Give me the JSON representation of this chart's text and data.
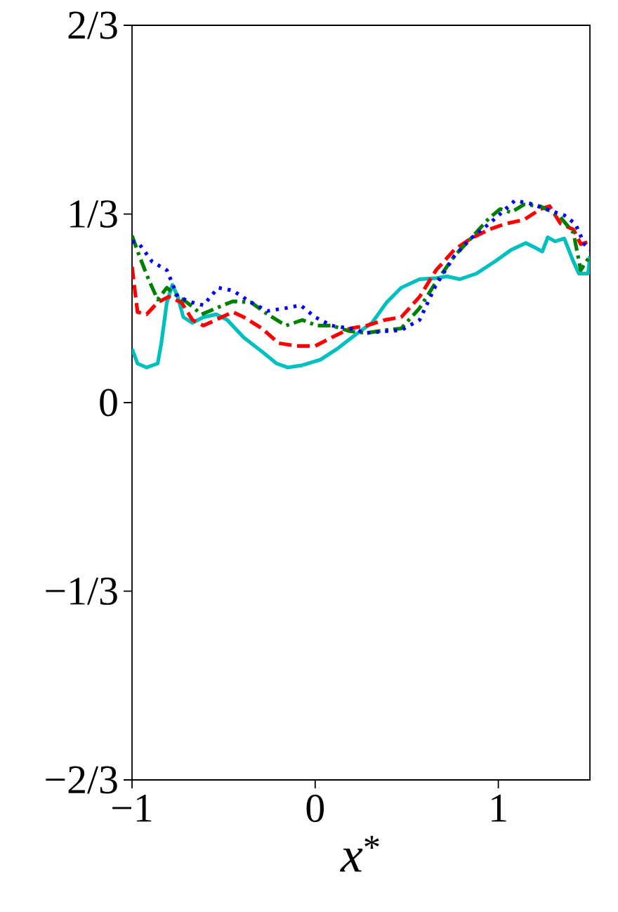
{
  "chart_data": {
    "type": "line",
    "xlabel": "*x*$^{*}$",
    "xlim": [
      -1,
      1.5
    ],
    "xticks": [
      {
        "value": -1,
        "label": "−1"
      },
      0,
      1
    ],
    "ylim": [
      -0.6667,
      0.6667
    ],
    "yticks": [
      {
        "value": -0.6667,
        "label": "−2/3"
      },
      {
        "value": -0.3333,
        "label": "−1/3"
      },
      0,
      {
        "value": 0.3333,
        "label": "1/3"
      },
      {
        "value": 0.6667,
        "label": "2/3"
      }
    ],
    "series": [
      {
        "color": "#00bfbf",
        "line_style": "solid",
        "x": [
          -1,
          -0.97,
          -0.92,
          -0.86,
          -0.84,
          -0.81,
          -0.78,
          -0.75,
          -0.72,
          -0.67,
          -0.61,
          -0.54,
          -0.48,
          -0.39,
          -0.29,
          -0.21,
          -0.15,
          -0.07,
          0.03,
          0.12,
          0.22,
          0.31,
          0.39,
          0.47,
          0.57,
          0.66,
          0.72,
          0.79,
          0.88,
          0.98,
          1.07,
          1.15,
          1.2,
          1.24,
          1.27,
          1.31,
          1.36,
          1.41,
          1.44,
          1.49,
          1.5
        ],
        "values": [
          0.095,
          0.069,
          0.062,
          0.069,
          0.105,
          0.177,
          0.208,
          0.187,
          0.151,
          0.141,
          0.151,
          0.156,
          0.146,
          0.115,
          0.09,
          0.069,
          0.062,
          0.066,
          0.076,
          0.095,
          0.12,
          0.141,
          0.177,
          0.203,
          0.218,
          0.22,
          0.223,
          0.218,
          0.228,
          0.249,
          0.27,
          0.282,
          0.274,
          0.267,
          0.292,
          0.285,
          0.29,
          0.249,
          0.228,
          0.228,
          0.259
        ]
      },
      {
        "color": "#ff0000",
        "line_style": "dashed",
        "x": [
          -1,
          -0.97,
          -0.92,
          -0.86,
          -0.8,
          -0.73,
          -0.67,
          -0.61,
          -0.51,
          -0.45,
          -0.39,
          -0.29,
          -0.2,
          -0.1,
          0,
          0.09,
          0.19,
          0.28,
          0.38,
          0.47,
          0.57,
          0.66,
          0.76,
          0.85,
          0.95,
          1.04,
          1.14,
          1.23,
          1.28,
          1.34,
          1.41,
          1.45,
          1.5
        ],
        "values": [
          0.24,
          0.16,
          0.156,
          0.177,
          0.187,
          0.177,
          0.146,
          0.136,
          0.151,
          0.16,
          0.151,
          0.131,
          0.105,
          0.1,
          0.1,
          0.115,
          0.131,
          0.136,
          0.146,
          0.151,
          0.187,
          0.234,
          0.27,
          0.29,
          0.306,
          0.316,
          0.323,
          0.342,
          0.347,
          0.316,
          0.306,
          0.28,
          0.285
        ]
      },
      {
        "color": "#008000",
        "line_style": "dashdot",
        "x": [
          -1,
          -0.96,
          -0.91,
          -0.86,
          -0.81,
          -0.77,
          -0.7,
          -0.62,
          -0.54,
          -0.45,
          -0.35,
          -0.26,
          -0.16,
          -0.07,
          0.01,
          0.09,
          0.19,
          0.28,
          0.38,
          0.47,
          0.57,
          0.66,
          0.76,
          0.85,
          0.95,
          1.01,
          1.07,
          1.14,
          1.23,
          1.33,
          1.41,
          1.45,
          1.5
        ],
        "values": [
          0.295,
          0.259,
          0.218,
          0.182,
          0.203,
          0.192,
          0.177,
          0.156,
          0.167,
          0.179,
          0.177,
          0.156,
          0.136,
          0.146,
          0.136,
          0.136,
          0.126,
          0.123,
          0.128,
          0.131,
          0.167,
          0.213,
          0.259,
          0.29,
          0.326,
          0.342,
          0.336,
          0.35,
          0.347,
          0.331,
          0.3,
          0.234,
          0.259
        ]
      },
      {
        "color": "#0000ff",
        "line_style": "dotted",
        "x": [
          -1,
          -0.96,
          -0.89,
          -0.81,
          -0.75,
          -0.67,
          -0.61,
          -0.53,
          -0.45,
          -0.35,
          -0.26,
          -0.16,
          -0.08,
          0,
          0.09,
          0.19,
          0.28,
          0.38,
          0.47,
          0.57,
          0.66,
          0.76,
          0.85,
          0.95,
          1.04,
          1.09,
          1.17,
          1.26,
          1.36,
          1.42,
          1.47,
          1.5
        ],
        "values": [
          0.285,
          0.28,
          0.249,
          0.234,
          0.187,
          0.177,
          0.172,
          0.203,
          0.198,
          0.177,
          0.162,
          0.167,
          0.172,
          0.151,
          0.136,
          0.131,
          0.123,
          0.126,
          0.128,
          0.146,
          0.208,
          0.259,
          0.29,
          0.316,
          0.342,
          0.357,
          0.352,
          0.342,
          0.331,
          0.316,
          0.28,
          0.27
        ]
      }
    ]
  }
}
